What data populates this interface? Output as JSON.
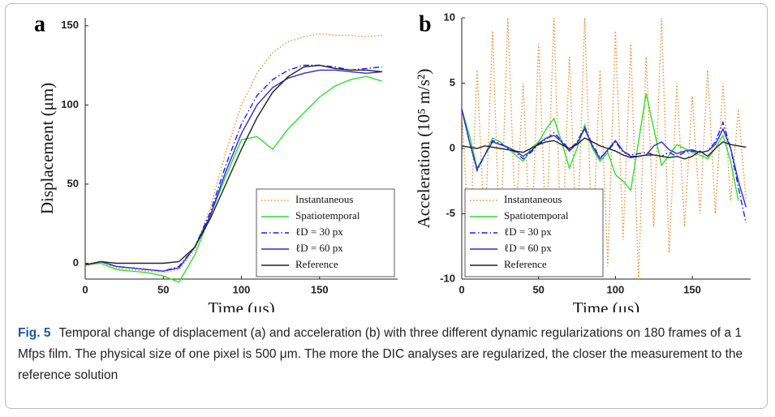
{
  "chart_data": [
    {
      "type": "line",
      "panel": "a",
      "xlabel": "Time (μs)",
      "ylabel": "Displacement (μm)",
      "x": [
        0,
        10,
        20,
        30,
        40,
        50,
        60,
        70,
        80,
        90,
        100,
        110,
        120,
        130,
        140,
        150,
        160,
        170,
        180,
        190
      ],
      "xlim": [
        0,
        200
      ],
      "xticks": [
        0,
        50,
        100,
        150
      ],
      "ylim": [
        -10,
        155
      ],
      "yticks": [
        0,
        50,
        100,
        150
      ],
      "legend": "lower right",
      "series": [
        {
          "name": "Instantaneous",
          "color": "#f28e2b",
          "dash": "dotted",
          "values": [
            -2,
            1,
            -3,
            -4,
            -5,
            -6,
            -4,
            8,
            35,
            70,
            100,
            120,
            133,
            140,
            143,
            145,
            144,
            144,
            143,
            144
          ]
        },
        {
          "name": "Spatiotemporal",
          "color": "#2ee02e",
          "dash": "solid",
          "values": [
            -1,
            0,
            -4,
            -5,
            -6,
            -8,
            -12,
            5,
            30,
            55,
            78,
            80,
            72,
            85,
            95,
            105,
            112,
            116,
            118,
            115
          ]
        },
        {
          "name": "ℓD = 30 px",
          "color": "#1a1aff",
          "dash": "dashdot",
          "values": [
            -1,
            1,
            -2,
            -3,
            -4,
            -5,
            -2,
            10,
            32,
            62,
            88,
            106,
            116,
            122,
            125,
            125,
            124,
            122,
            123,
            124
          ]
        },
        {
          "name": "ℓD = 60 px",
          "color": "#2a2ad8",
          "dash": "solid",
          "values": [
            -1,
            1,
            -2,
            -3,
            -4,
            -5,
            -3,
            10,
            30,
            58,
            82,
            100,
            111,
            117,
            120,
            122,
            122,
            121,
            120,
            121
          ]
        },
        {
          "name": "Reference",
          "color": "#222222",
          "dash": "solid",
          "values": [
            -1,
            1,
            0,
            0,
            0,
            0,
            1,
            10,
            28,
            50,
            72,
            92,
            108,
            118,
            124,
            125,
            123,
            122,
            122,
            121
          ]
        }
      ]
    },
    {
      "type": "line",
      "panel": "b",
      "xlabel": "Time (μs)",
      "ylabel": "Acceleration (10⁵ m/s²)",
      "x": [
        0,
        5,
        10,
        15,
        20,
        25,
        30,
        35,
        40,
        45,
        50,
        55,
        60,
        65,
        70,
        75,
        80,
        85,
        90,
        95,
        100,
        105,
        110,
        115,
        120,
        125,
        130,
        135,
        140,
        145,
        150,
        155,
        160,
        165,
        170,
        175,
        180,
        185
      ],
      "xlim": [
        0,
        188
      ],
      "xticks": [
        0,
        50,
        100,
        150
      ],
      "ylim": [
        -10,
        10
      ],
      "yticks": [
        -10,
        -5,
        0,
        5,
        10
      ],
      "legend": "lower left",
      "series": [
        {
          "name": "Instantaneous",
          "color": "#f28e2b",
          "dash": "dotted",
          "values": [
            3,
            -8,
            6,
            -7,
            9,
            -8,
            10,
            -6,
            5,
            -9,
            8,
            -7,
            10,
            -9,
            7,
            -8,
            10,
            -8,
            6,
            -9,
            9,
            -7,
            8,
            -10,
            7,
            -6,
            10,
            -8,
            5,
            -6,
            4,
            -5,
            6,
            -5,
            5,
            -4,
            3,
            -4
          ]
        },
        {
          "name": "Spatiotemporal",
          "color": "#2ee02e",
          "dash": "solid",
          "values": [
            3,
            1,
            -1.5,
            -0.5,
            0.8,
            0.5,
            0,
            -0.5,
            -1,
            0,
            0.5,
            1.5,
            2.3,
            0.5,
            -1.5,
            0,
            1.8,
            0,
            -1,
            -0.3,
            -2,
            -2.5,
            -3.2,
            0.5,
            4.2,
            1.5,
            -1.3,
            -0.5,
            0.3,
            0,
            -0.3,
            -0.5,
            -0.8,
            0,
            1,
            -1,
            -4,
            null
          ]
        },
        {
          "name": "ℓD = 30 px",
          "color": "#1a1aff",
          "dash": "dashdot",
          "values": [
            3,
            0.5,
            -1.7,
            -0.5,
            0.6,
            0.4,
            0,
            -0.3,
            -0.8,
            -0.3,
            0.3,
            0.7,
            1.2,
            0.6,
            -0.1,
            0.5,
            1.6,
            0.3,
            -0.7,
            -0.2,
            0.5,
            -0.3,
            -0.5,
            -0.4,
            -0.3,
            -0.5,
            -0.6,
            -0.3,
            -0.6,
            -0.3,
            -0.2,
            -0.3,
            -0.2,
            0.5,
            2,
            0,
            -3,
            -5.7
          ]
        },
        {
          "name": "ℓD = 60 px",
          "color": "#2a2ad8",
          "dash": "solid",
          "values": [
            3,
            0.5,
            -1.6,
            -0.5,
            0.5,
            0.3,
            0.1,
            -0.2,
            -0.6,
            -0.2,
            0.4,
            0.8,
            1,
            0.5,
            -0.2,
            0.4,
            1.5,
            0.2,
            -0.8,
            -0.1,
            0.6,
            -0.2,
            -0.6,
            -0.6,
            -0.5,
            0.2,
            0.5,
            -0.1,
            -0.4,
            -0.2,
            -0.1,
            -0.3,
            -0.2,
            0.3,
            1.5,
            0,
            -2.5,
            -4.5
          ]
        },
        {
          "name": "Reference",
          "color": "#222222",
          "dash": "solid",
          "values": [
            0.2,
            0.1,
            0,
            0.2,
            0.1,
            0,
            -0.1,
            -0.2,
            -0.3,
            0,
            0.3,
            0.5,
            0.6,
            0.3,
            0,
            0.3,
            0.8,
            0.5,
            0.2,
            0,
            -0.2,
            -0.5,
            -0.7,
            -0.6,
            -0.5,
            -0.5,
            -0.6,
            -0.7,
            -0.6,
            -0.8,
            -0.6,
            -0.2,
            -0.6,
            0,
            0.5,
            0.3,
            0.2,
            0.1
          ]
        }
      ]
    }
  ],
  "caption": {
    "label": "Fig. 5",
    "text": "Temporal change of displacement (a) and acceleration (b) with three different dynamic regularizations on 180 frames of a 1 Mfps film. The physical size of one pixel is 500 μm. The more the DIC analyses are regularized, the closer the measurement to the reference solution"
  }
}
